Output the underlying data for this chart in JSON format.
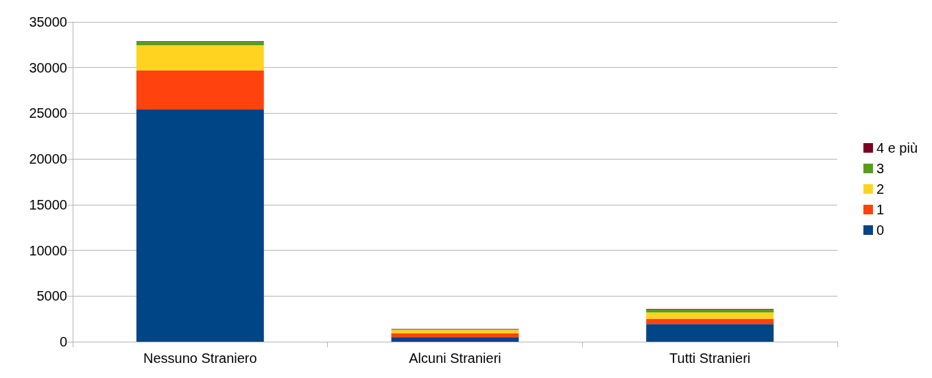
{
  "chart_data": {
    "type": "bar",
    "stacked": true,
    "categories": [
      "Nessuno Straniero",
      "Alcuni Stranieri",
      "Tutti Stranieri"
    ],
    "series": [
      {
        "name": "0",
        "color": "#004586",
        "values": [
          25400,
          500,
          1930
        ]
      },
      {
        "name": "1",
        "color": "#ff420e",
        "values": [
          4300,
          430,
          580
        ]
      },
      {
        "name": "2",
        "color": "#ffd320",
        "values": [
          2750,
          360,
          700
        ]
      },
      {
        "name": "3",
        "color": "#579d1c",
        "values": [
          360,
          50,
          310
        ]
      },
      {
        "name": "4 e più",
        "color": "#7e0021",
        "values": [
          80,
          50,
          50
        ]
      }
    ],
    "ylim": [
      0,
      35000
    ],
    "yticks": [
      0,
      5000,
      10000,
      15000,
      20000,
      25000,
      30000,
      35000
    ],
    "grid": "y",
    "legend": "right"
  }
}
